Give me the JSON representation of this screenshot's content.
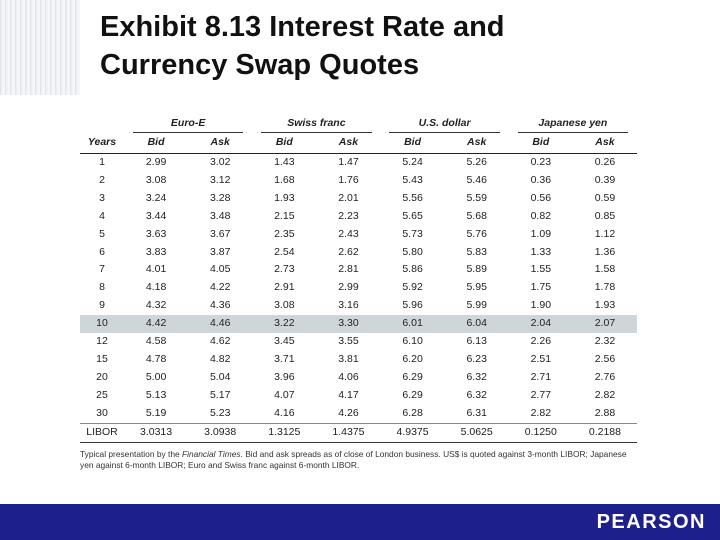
{
  "title": "Exhibit 8.13  Interest Rate and\nCurrency Swap Quotes",
  "table": {
    "groups": [
      "Euro-E",
      "Swiss franc",
      "U.S. dollar",
      "Japanese yen"
    ],
    "years_header": "Years",
    "bid_label": "Bid",
    "ask_label": "Ask",
    "highlight_row": 9,
    "rows": [
      {
        "label": "1",
        "values": [
          "2.99",
          "3.02",
          "1.43",
          "1.47",
          "5.24",
          "5.26",
          "0.23",
          "0.26"
        ]
      },
      {
        "label": "2",
        "values": [
          "3.08",
          "3.12",
          "1.68",
          "1.76",
          "5.43",
          "5.46",
          "0.36",
          "0.39"
        ]
      },
      {
        "label": "3",
        "values": [
          "3.24",
          "3.28",
          "1.93",
          "2.01",
          "5.56",
          "5.59",
          "0.56",
          "0.59"
        ]
      },
      {
        "label": "4",
        "values": [
          "3.44",
          "3.48",
          "2.15",
          "2.23",
          "5.65",
          "5.68",
          "0.82",
          "0.85"
        ]
      },
      {
        "label": "5",
        "values": [
          "3.63",
          "3.67",
          "2.35",
          "2.43",
          "5.73",
          "5.76",
          "1.09",
          "1.12"
        ]
      },
      {
        "label": "6",
        "values": [
          "3.83",
          "3.87",
          "2.54",
          "2.62",
          "5.80",
          "5.83",
          "1.33",
          "1.36"
        ]
      },
      {
        "label": "7",
        "values": [
          "4.01",
          "4.05",
          "2.73",
          "2.81",
          "5.86",
          "5.89",
          "1.55",
          "1.58"
        ]
      },
      {
        "label": "8",
        "values": [
          "4.18",
          "4.22",
          "2.91",
          "2.99",
          "5.92",
          "5.95",
          "1.75",
          "1.78"
        ]
      },
      {
        "label": "9",
        "values": [
          "4.32",
          "4.36",
          "3.08",
          "3.16",
          "5.96",
          "5.99",
          "1.90",
          "1.93"
        ]
      },
      {
        "label": "10",
        "values": [
          "4.42",
          "4.46",
          "3.22",
          "3.30",
          "6.01",
          "6.04",
          "2.04",
          "2.07"
        ]
      },
      {
        "label": "12",
        "values": [
          "4.58",
          "4.62",
          "3.45",
          "3.55",
          "6.10",
          "6.13",
          "2.26",
          "2.32"
        ]
      },
      {
        "label": "15",
        "values": [
          "4.78",
          "4.82",
          "3.71",
          "3.81",
          "6.20",
          "6.23",
          "2.51",
          "2.56"
        ]
      },
      {
        "label": "20",
        "values": [
          "5.00",
          "5.04",
          "3.96",
          "4.06",
          "6.29",
          "6.32",
          "2.71",
          "2.76"
        ]
      },
      {
        "label": "25",
        "values": [
          "5.13",
          "5.17",
          "4.07",
          "4.17",
          "6.29",
          "6.32",
          "2.77",
          "2.82"
        ]
      },
      {
        "label": "30",
        "values": [
          "5.19",
          "5.23",
          "4.16",
          "4.26",
          "6.28",
          "6.31",
          "2.82",
          "2.88"
        ]
      },
      {
        "label": "LIBOR",
        "values": [
          "3.0313",
          "3.0938",
          "1.3125",
          "1.4375",
          "4.9375",
          "5.0625",
          "0.1250",
          "0.2188"
        ]
      }
    ]
  },
  "note": {
    "part1": "Typical presentation by the ",
    "source": "Financial Times",
    "part2": ". Bid and ask spreads as of close of London business. US$ is quoted against 3-month LIBOR; Japanese yen against 6-month LIBOR; Euro and Swiss franc against 6-month LIBOR."
  },
  "footer": {
    "brand": "PEARSON",
    "color": "#1d1f8c"
  }
}
